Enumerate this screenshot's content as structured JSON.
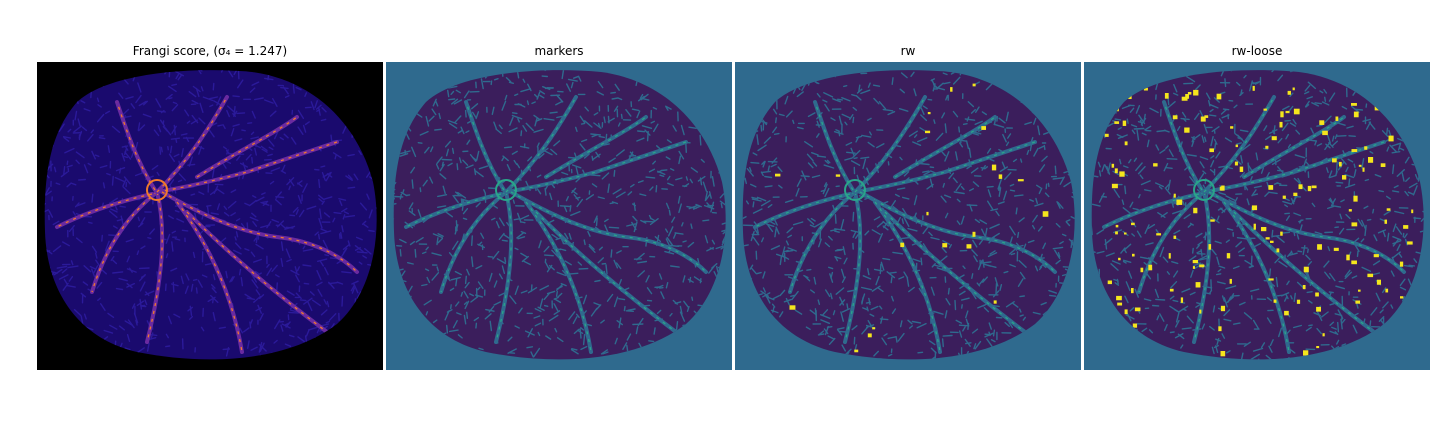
{
  "figure": {
    "panels": [
      {
        "id": "frangi",
        "title": "Frangi score, (σ₄ = 1.247)",
        "background": "#000000",
        "blob": "#1a0a6e",
        "texture": "#2b1a9a",
        "vessel": "#6a2aa0",
        "highlight": "#f07a2a"
      },
      {
        "id": "markers",
        "title": "markers",
        "background": "#2f6a8e",
        "blob": "#3b1e5c",
        "texture": "#2f6a8e",
        "vessel": "#2f6a8e",
        "highlight": "#2aa58a"
      },
      {
        "id": "rw",
        "title": "rw",
        "background": "#2f6a8e",
        "blob": "#3b1e5c",
        "texture": "#2f6a8e",
        "vessel": "#2f6a8e",
        "highlight": "#2aa58a",
        "accent": "#f5e61d"
      },
      {
        "id": "rw-loose",
        "title": "rw-loose",
        "background": "#2f6a8e",
        "blob": "#3b1e5c",
        "texture": "#2f6a8e",
        "vessel": "#2f6a8e",
        "highlight": "#2aa58a",
        "accent": "#f5e61d"
      }
    ]
  }
}
